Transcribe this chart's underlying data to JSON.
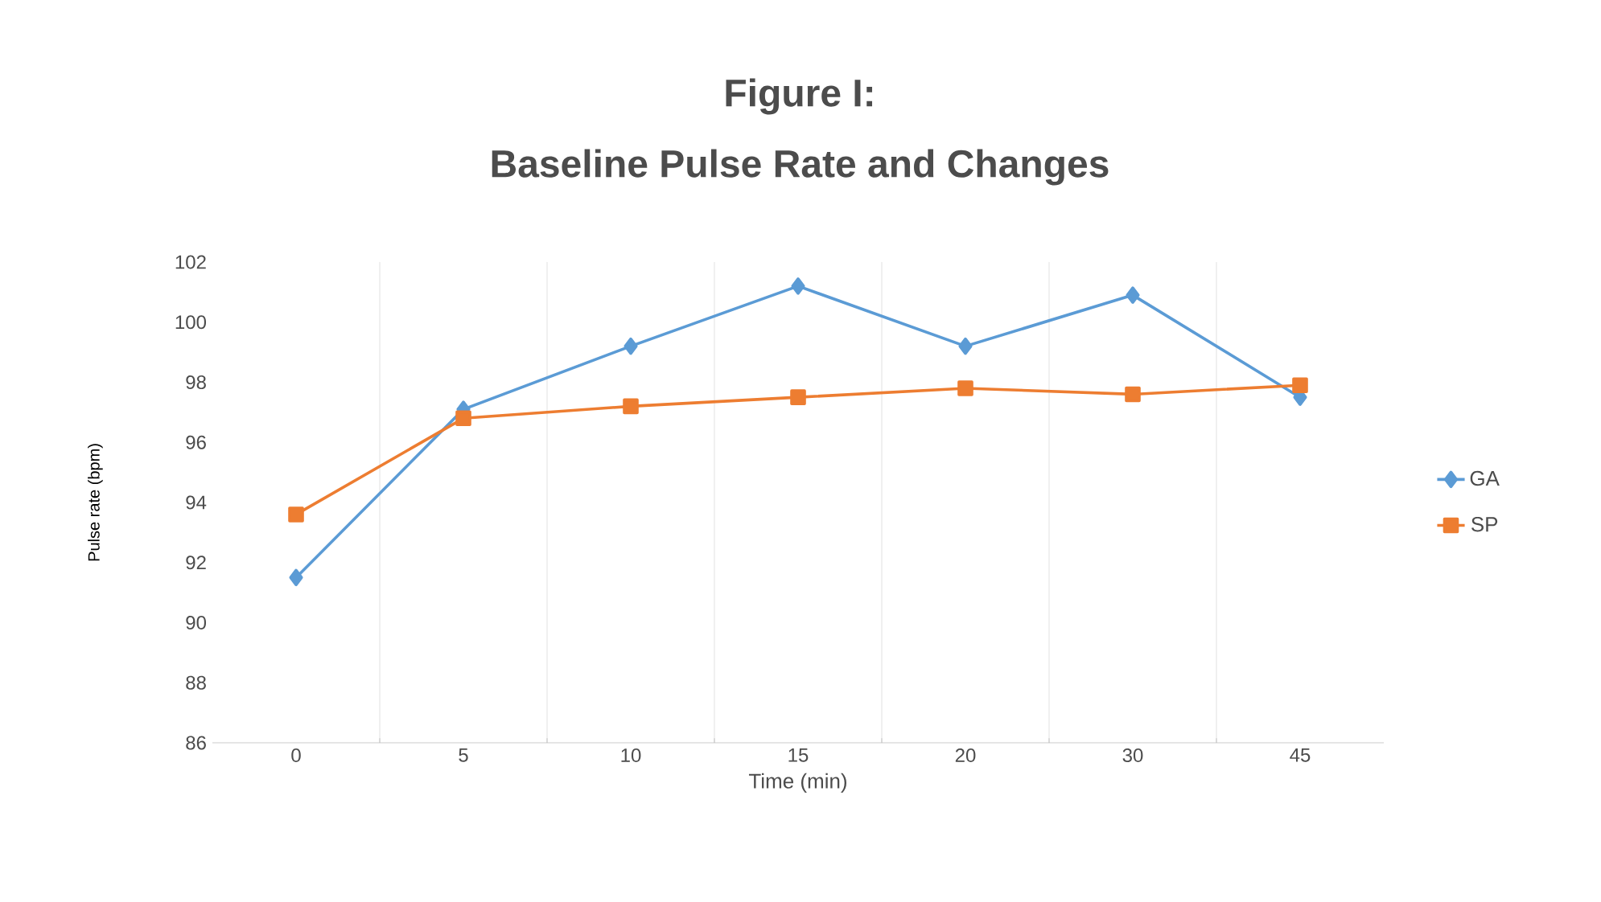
{
  "chart_data": {
    "type": "line",
    "title": "Figure I:\nBaseline Pulse Rate and Changes",
    "xlabel": "Time (min)",
    "ylabel": "Pulse rate (bpm)",
    "categories": [
      "0",
      "5",
      "10",
      "15",
      "20",
      "30",
      "45"
    ],
    "series": [
      {
        "name": "GA",
        "color": "#5b9bd5",
        "marker": "diamond",
        "values": [
          91.5,
          97.1,
          99.2,
          101.2,
          99.2,
          100.9,
          97.5
        ]
      },
      {
        "name": "SP",
        "color": "#ed7d31",
        "marker": "square",
        "values": [
          93.6,
          96.8,
          97.2,
          97.5,
          97.8,
          97.6,
          97.9
        ]
      }
    ],
    "ylim": [
      86,
      102
    ],
    "yticks": [
      86,
      88,
      90,
      92,
      94,
      96,
      98,
      100,
      102
    ],
    "grid": "x",
    "legend": "right",
    "line_style": "solid"
  }
}
